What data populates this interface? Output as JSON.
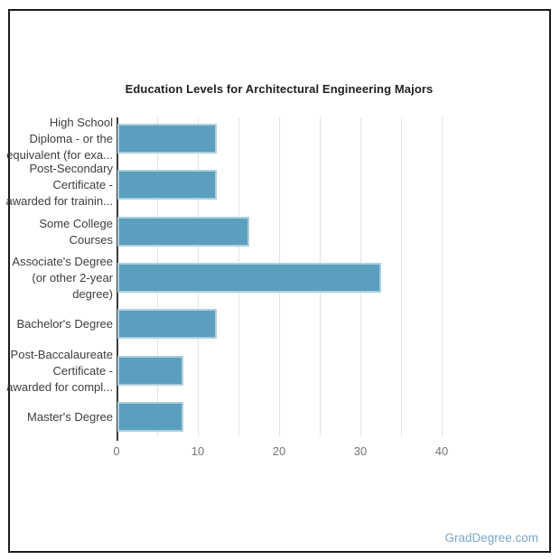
{
  "page": {
    "watermark": "GradDegree.com"
  },
  "chart_data": {
    "type": "bar",
    "orientation": "horizontal",
    "title": "Education Levels for Architectural Engineering Majors",
    "categories": [
      [
        "High School",
        "Diploma - or the",
        "equivalent (for exa..."
      ],
      [
        "Post-Secondary",
        "Certificate -",
        "awarded for trainin..."
      ],
      [
        "Some College",
        "Courses"
      ],
      [
        "Associate's Degree",
        "(or other 2-year",
        "degree)"
      ],
      [
        "Bachelor's Degree"
      ],
      [
        "Post-Baccalaureate",
        "Certificate -",
        "awarded for compl..."
      ],
      [
        "Master's Degree"
      ]
    ],
    "values": [
      12.2,
      12.2,
      16.2,
      32.4,
      12.2,
      8.1,
      8.1
    ],
    "xlabel": "",
    "ylabel": "",
    "x_ticks": [
      0,
      10,
      20,
      30,
      40
    ],
    "xlim": [
      0,
      45
    ],
    "grid": true,
    "grid_step": 5,
    "legend": false,
    "colors": {
      "bar_fill": "#5a9fbd",
      "bar_border": "#abcfdf",
      "axis_line": "#3b3b3b",
      "gridline": "#e2e2e2",
      "tick_label": "#757575",
      "category_label": "#3d3d3d",
      "title": "#1f1f1f",
      "watermark": "#79a8cb",
      "card_border": "#1b1b1b"
    }
  }
}
